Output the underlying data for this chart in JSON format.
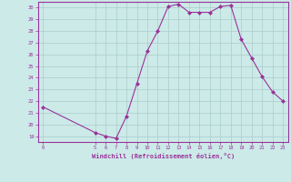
{
  "x": [
    0,
    5,
    6,
    7,
    8,
    9,
    10,
    11,
    12,
    13,
    14,
    15,
    16,
    17,
    18,
    19,
    20,
    21,
    22,
    23
  ],
  "y": [
    21.5,
    19.3,
    19.0,
    18.8,
    20.7,
    23.5,
    26.3,
    28.0,
    30.1,
    30.3,
    29.6,
    29.6,
    29.6,
    30.1,
    30.2,
    27.3,
    25.7,
    24.1,
    22.8,
    22.0
  ],
  "line_color": "#993399",
  "marker_color": "#993399",
  "bg_color": "#cceae8",
  "grid_color": "#aacccc",
  "xlabel": "Windchill (Refroidissement éolien,°C)",
  "xlim": [
    -0.5,
    23.5
  ],
  "ylim": [
    18.5,
    30.5
  ],
  "yticks": [
    19,
    20,
    21,
    22,
    23,
    24,
    25,
    26,
    27,
    28,
    29,
    30
  ],
  "xticks": [
    0,
    5,
    6,
    7,
    8,
    9,
    10,
    11,
    12,
    13,
    14,
    15,
    16,
    17,
    18,
    19,
    20,
    21,
    22,
    23
  ],
  "xlabel_color": "#993399",
  "tick_color": "#993399",
  "figsize": [
    3.2,
    2.0
  ],
  "dpi": 100
}
